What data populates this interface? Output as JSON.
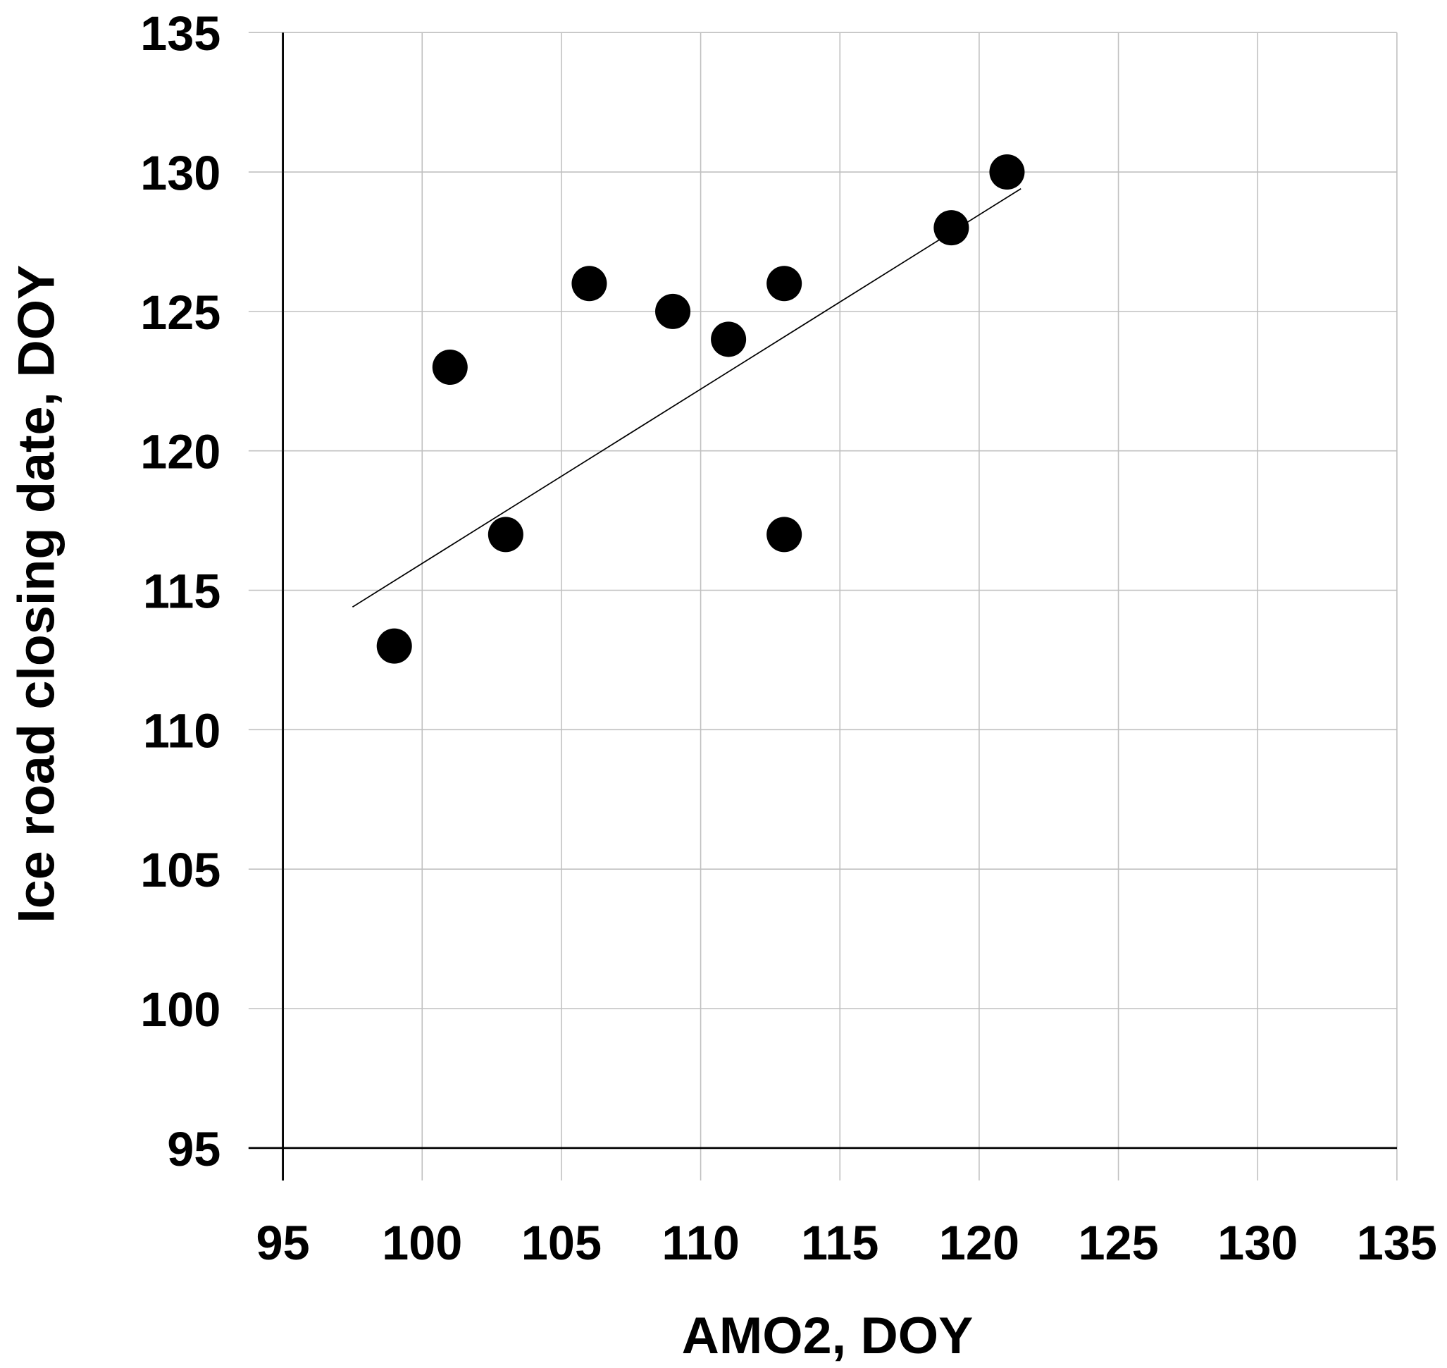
{
  "chart_data": {
    "type": "scatter",
    "title": "",
    "xlabel": "AMO2, DOY",
    "ylabel": "Ice road closing date,  DOY",
    "xlim": [
      95,
      135
    ],
    "ylim": [
      95,
      135
    ],
    "xticks": [
      "95",
      "100",
      "105",
      "110",
      "115",
      "120",
      "125",
      "130",
      "135"
    ],
    "yticks": [
      "95",
      "100",
      "105",
      "110",
      "115",
      "120",
      "125",
      "130",
      "135"
    ],
    "grid": true,
    "points": [
      {
        "x": 99,
        "y": 113
      },
      {
        "x": 101,
        "y": 123
      },
      {
        "x": 103,
        "y": 117
      },
      {
        "x": 106,
        "y": 126
      },
      {
        "x": 109,
        "y": 125
      },
      {
        "x": 111,
        "y": 124
      },
      {
        "x": 113,
        "y": 126
      },
      {
        "x": 113,
        "y": 117
      },
      {
        "x": 119,
        "y": 128
      },
      {
        "x": 121,
        "y": 130
      }
    ],
    "trendline": {
      "x": [
        97.5,
        121.5
      ],
      "y": [
        114.4,
        129.4
      ]
    },
    "colors": {
      "points": "#000000",
      "grid": "#c0c0c0",
      "trendline": "#000000"
    }
  }
}
